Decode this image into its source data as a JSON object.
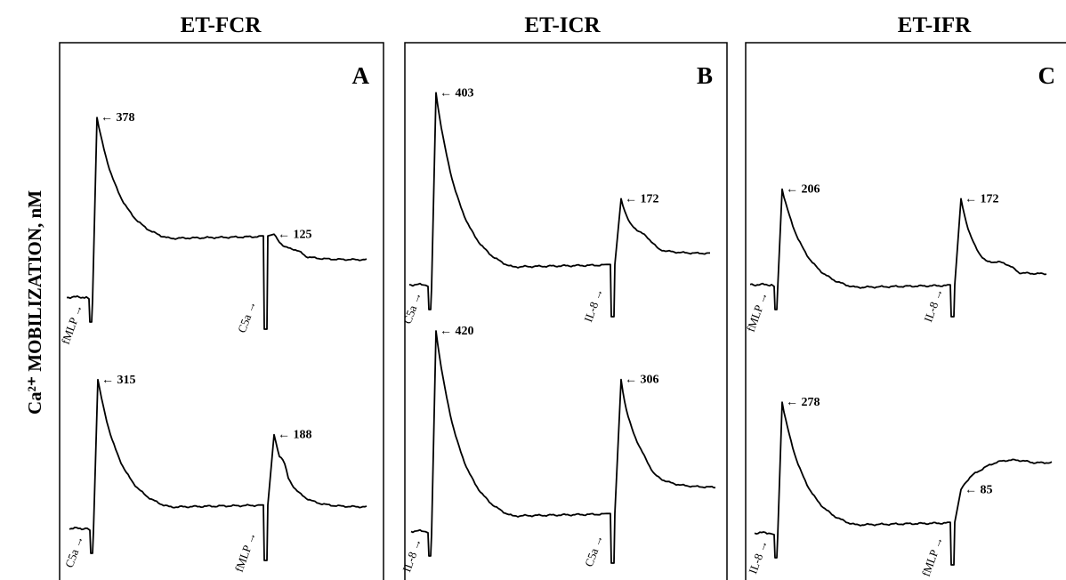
{
  "y_axis_label": "Ca²⁺ MOBILIZATION, nM",
  "colors": {
    "trace": "#000000",
    "background": "#ffffff"
  },
  "chart_data": [
    {
      "type": "line",
      "title": "ET-FCR",
      "panel": "A",
      "traces": [
        {
          "responses": [
            {
              "stimulus": "fMLP",
              "peak": 378
            },
            {
              "stimulus": "C5a",
              "peak": 125
            }
          ]
        },
        {
          "responses": [
            {
              "stimulus": "C5a",
              "peak": 315
            },
            {
              "stimulus": "fMLP",
              "peak": 188
            }
          ]
        }
      ]
    },
    {
      "type": "line",
      "title": "ET-ICR",
      "panel": "B",
      "traces": [
        {
          "responses": [
            {
              "stimulus": "C5a",
              "peak": 403
            },
            {
              "stimulus": "IL-8",
              "peak": 172
            }
          ]
        },
        {
          "responses": [
            {
              "stimulus": "IL-8",
              "peak": 420
            },
            {
              "stimulus": "C5a",
              "peak": 306
            }
          ]
        }
      ]
    },
    {
      "type": "line",
      "title": "ET-IFR",
      "panel": "C",
      "traces": [
        {
          "responses": [
            {
              "stimulus": "fMLP",
              "peak": 206
            },
            {
              "stimulus": "IL-8",
              "peak": 172
            }
          ]
        },
        {
          "responses": [
            {
              "stimulus": "IL-8",
              "peak": 278
            },
            {
              "stimulus": "fMLP",
              "peak": 85
            }
          ]
        }
      ]
    }
  ]
}
